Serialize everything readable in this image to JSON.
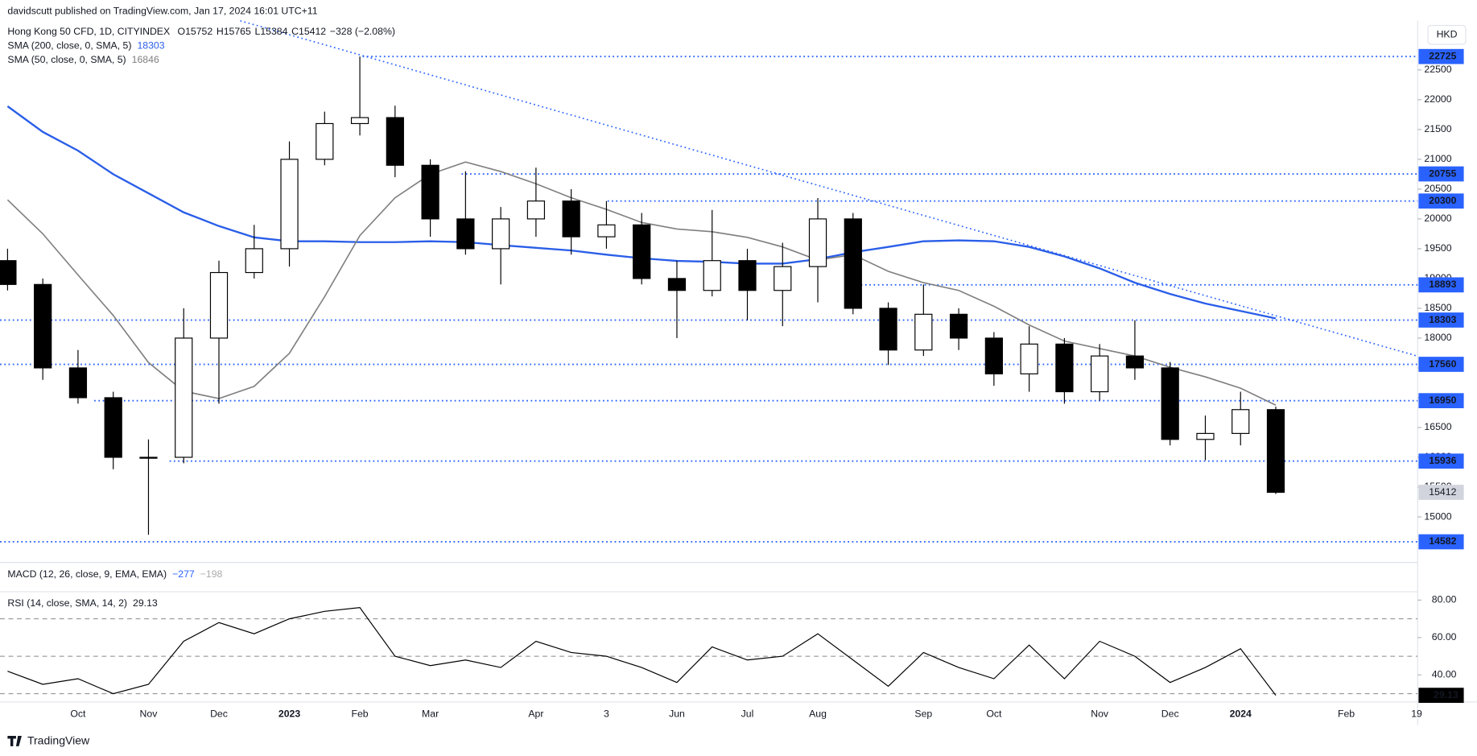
{
  "header": "davidscutt published on TradingView.com, Jan 17, 2024 16:01 UTC+11",
  "footer": "TradingView",
  "chart_data": {
    "type": "candlestick",
    "title": "Hong Kong 50 CFD, 1D, CITYINDEX",
    "ohlc_text": [
      "O15752",
      "H15765",
      "L15384",
      "C15412",
      "−328 (−2.08%)"
    ],
    "currency": "HKD",
    "categories": [
      null,
      null,
      "Oct",
      null,
      "Nov",
      null,
      "Dec",
      null,
      "2023",
      null,
      "Feb",
      null,
      "Mar",
      null,
      null,
      "Apr",
      null,
      "3",
      null,
      "Jun",
      null,
      "Jul",
      null,
      "Aug",
      null,
      null,
      "Sep",
      null,
      "Oct",
      null,
      null,
      "Nov",
      null,
      "Dec",
      null,
      "2024",
      null,
      null,
      "Feb",
      null,
      "19"
    ],
    "open": [
      19300,
      18900,
      17500,
      17000,
      16000,
      16000,
      18000,
      19100,
      19500,
      21000,
      21600,
      21700,
      20900,
      20000,
      19500,
      20000,
      20300,
      19700,
      19900,
      19000,
      18800,
      19300,
      18800,
      19200,
      20000,
      18500,
      17800,
      18400,
      18000,
      17400,
      17900,
      17100,
      17700,
      17500,
      16300,
      16400,
      16800,
      null,
      null,
      null,
      null
    ],
    "high": [
      19500,
      19000,
      17800,
      17100,
      16300,
      18500,
      19300,
      19900,
      21300,
      21800,
      22725,
      21900,
      21000,
      20800,
      20200,
      20860,
      20500,
      20300,
      20100,
      19300,
      20150,
      19500,
      19600,
      20350,
      20100,
      18600,
      18900,
      18500,
      18100,
      18200,
      18000,
      17900,
      18300,
      17600,
      16700,
      17100,
      16850,
      null,
      null,
      null,
      null
    ],
    "low": [
      18800,
      17300,
      16900,
      15800,
      14700,
      15900,
      16900,
      19000,
      19200,
      20900,
      21400,
      20700,
      19700,
      19400,
      18900,
      19700,
      19400,
      19500,
      18900,
      18000,
      18700,
      18300,
      18200,
      18600,
      18400,
      17550,
      17700,
      17800,
      17200,
      17100,
      16900,
      16950,
      17300,
      16200,
      15950,
      16200,
      15384,
      null,
      null,
      null,
      null
    ],
    "close": [
      18900,
      17500,
      17000,
      16000,
      16000,
      18000,
      19100,
      19500,
      21000,
      21600,
      21700,
      20900,
      20000,
      19500,
      20000,
      20300,
      19700,
      19900,
      19000,
      18800,
      19300,
      18800,
      19200,
      20000,
      18500,
      17800,
      18400,
      18000,
      17400,
      17900,
      17100,
      17700,
      17500,
      16300,
      16400,
      16800,
      15412,
      null,
      null,
      null,
      null
    ],
    "up_color": "#ffffff",
    "down_color": "#000000",
    "series": [
      {
        "name": "SMA (200, close, 0, SMA, 5)",
        "color": "#2a5ee8",
        "last": 18303,
        "values": [
          21890,
          21460,
          21145,
          20750,
          20430,
          20110,
          19880,
          19690,
          19625,
          19625,
          19610,
          19610,
          19625,
          19610,
          19560,
          19515,
          19470,
          19400,
          19340,
          19295,
          19280,
          19250,
          19250,
          19325,
          19440,
          19530,
          19625,
          19640,
          19625,
          19530,
          19370,
          19170,
          18930,
          18740,
          18580,
          18455,
          18330,
          null,
          null,
          null,
          null
        ]
      },
      {
        "name": "SMA (50, close, 0, SMA, 5)",
        "color": "#808080",
        "last": 16846,
        "values": [
          20320,
          19750,
          19060,
          18380,
          17590,
          17110,
          16985,
          17190,
          17745,
          18695,
          19720,
          20355,
          20750,
          20955,
          20795,
          20590,
          20355,
          20160,
          19940,
          19830,
          19785,
          19690,
          19530,
          19310,
          19400,
          19120,
          18930,
          18800,
          18535,
          18220,
          17950,
          17825,
          17700,
          17510,
          17350,
          17160,
          16875,
          null,
          null,
          null,
          null
        ]
      }
    ],
    "levels": [
      22725,
      20755,
      20300,
      18893,
      18303,
      17560,
      16950,
      15936,
      14582
    ],
    "level_color": "#2962ff",
    "current_price": 15412,
    "ylim": [
      14235,
      23278
    ],
    "yticks": [
      15000,
      15500,
      16000,
      16500,
      17000,
      17500,
      18000,
      18500,
      19000,
      19500,
      20000,
      20500,
      21000,
      21500,
      22000,
      22500
    ],
    "macd": {
      "name": "MACD (12, 26, close, 9, EMA, EMA)",
      "values": [
        -277,
        -198
      ],
      "value_labels": [
        "−277",
        "−198"
      ],
      "colors": [
        "#2962ff",
        "#aaaaaa"
      ]
    },
    "rsi": {
      "name": "RSI (14, close, SMA, 14, 2)",
      "last": 29.13,
      "color": "#000000",
      "values": [
        42,
        35,
        38,
        30,
        35,
        58,
        68,
        62,
        70,
        74,
        76,
        50,
        45,
        48,
        44,
        58,
        52,
        50,
        44,
        36,
        55,
        48,
        50,
        62,
        48,
        34,
        52,
        44,
        38,
        56,
        38,
        58,
        50,
        36,
        44,
        54,
        29.13,
        null,
        null,
        null,
        null
      ],
      "ylim": [
        25.6,
        84.5
      ],
      "yticks": [
        {
          "value": 40,
          "label": "40.00"
        },
        {
          "value": 60,
          "label": "60.00"
        },
        {
          "value": 80,
          "label": "80.00"
        }
      ],
      "bands": [
        30,
        50,
        70
      ]
    }
  }
}
